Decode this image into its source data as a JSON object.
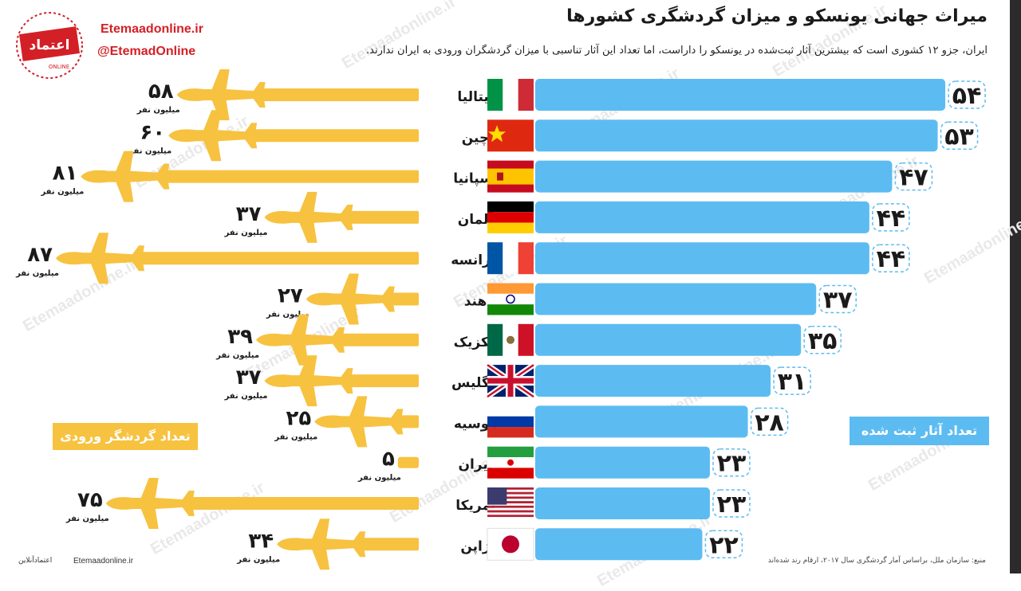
{
  "header": {
    "title": "میراث جهانی یونسکو و میزان گردشگری کشورها",
    "subtitle": "ایران، جزو ۱۲ کشوری است که بیشترین آثار ثبت‌شده در یونسکو را داراست، اما تعداد این آثار تناسبی با میزان گردشگران ورودی به ایران ندارند."
  },
  "brand": {
    "logo_text": "اعتماد",
    "logo_subtext": "ONLINE",
    "site": "Etemaadonline.ir",
    "handle": "@EtemadOnline",
    "watermark": "Etemaadonline.ir",
    "logo_color": "#d32027"
  },
  "legend": {
    "tourists": "تعداد گردشگر ورودی",
    "sites": "تعداد آثار ثبت شده"
  },
  "footer": {
    "source": "منبع: سازمان ملل، براساس آمار گردشگری سال ۲۰۱۷، ارقام رند شده‌اند",
    "site": "Etemaadonline.ir",
    "name": "اعتمادآنلاین"
  },
  "colors": {
    "sites_bar": "#5cbcf2",
    "tourist_plane": "#f7c240",
    "text": "#1a1a1a"
  },
  "chart_data": {
    "type": "bar",
    "categories": [
      "ایتالیا",
      "چین",
      "اسپانیا",
      "آلمان",
      "فرانسه",
      "هند",
      "مکزیک",
      "انگلیس",
      "روسیه",
      "ایران",
      "آمریکا",
      "ژاپن"
    ],
    "flags": [
      "italy",
      "china",
      "spain",
      "germany",
      "france",
      "india",
      "mexico",
      "uk",
      "russia",
      "iran",
      "usa",
      "japan"
    ],
    "series": [
      {
        "name": "تعداد آثار ثبت شده",
        "values": [
          54,
          53,
          47,
          44,
          44,
          37,
          35,
          31,
          28,
          23,
          23,
          22
        ],
        "labels": [
          "۵۴",
          "۵۳",
          "۴۷",
          "۴۴",
          "۴۴",
          "۳۷",
          "۳۵",
          "۳۱",
          "۲۸",
          "۲۳",
          "۲۳",
          "۲۲"
        ]
      },
      {
        "name": "تعداد گردشگر ورودی",
        "values": [
          58,
          60,
          81,
          37,
          87,
          27,
          39,
          37,
          25,
          5,
          75,
          34
        ],
        "labels": [
          "۵۸",
          "۶۰",
          "۸۱",
          "۳۷",
          "۸۷",
          "۲۷",
          "۳۹",
          "۳۷",
          "۲۵",
          "۵",
          "۷۵",
          "۳۴"
        ],
        "unit": "میلیون نفر"
      }
    ]
  }
}
